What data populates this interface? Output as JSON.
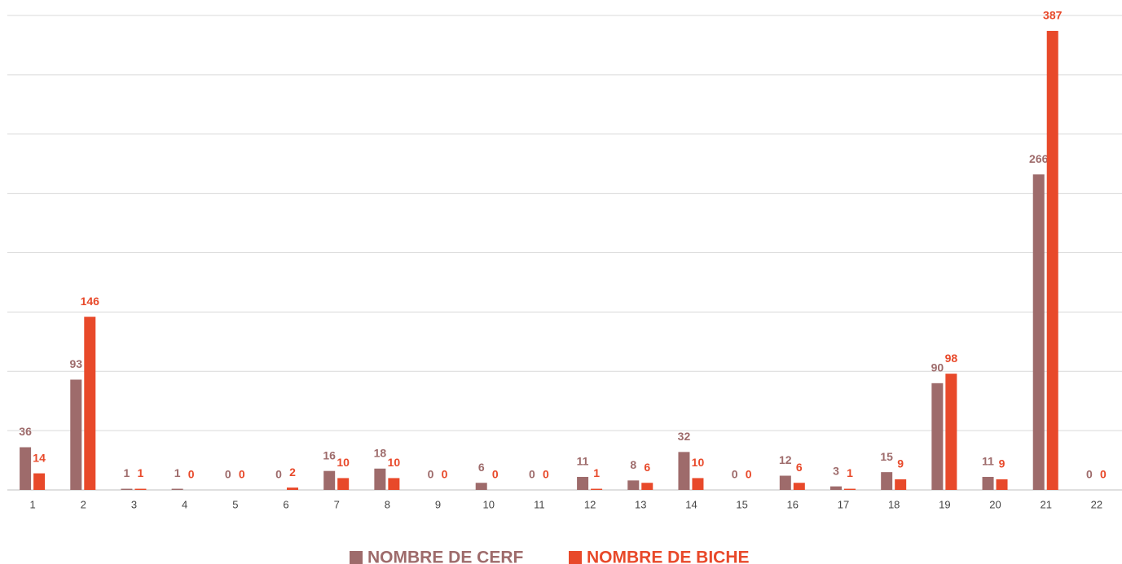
{
  "chart_data": {
    "type": "bar",
    "categories": [
      "1",
      "2",
      "3",
      "4",
      "5",
      "6",
      "7",
      "8",
      "9",
      "10",
      "11",
      "12",
      "13",
      "14",
      "15",
      "16",
      "17",
      "18",
      "19",
      "20",
      "21",
      "22"
    ],
    "series": [
      {
        "name": "NOMBRE DE CERF",
        "color": "#9e6b6b",
        "values": [
          36,
          93,
          1,
          1,
          0,
          0,
          16,
          18,
          0,
          6,
          0,
          11,
          8,
          32,
          0,
          12,
          3,
          15,
          90,
          11,
          266,
          0
        ]
      },
      {
        "name": "NOMBRE DE BICHE",
        "color": "#e8492a",
        "values": [
          14,
          146,
          1,
          0,
          0,
          2,
          10,
          10,
          0,
          0,
          0,
          1,
          6,
          10,
          0,
          6,
          1,
          9,
          98,
          9,
          387,
          0
        ]
      }
    ],
    "ylim": [
      0,
      400
    ],
    "yticks": [
      0,
      50,
      100,
      150,
      200,
      250,
      300,
      350,
      400
    ],
    "grid": true,
    "legend": "bottom"
  }
}
